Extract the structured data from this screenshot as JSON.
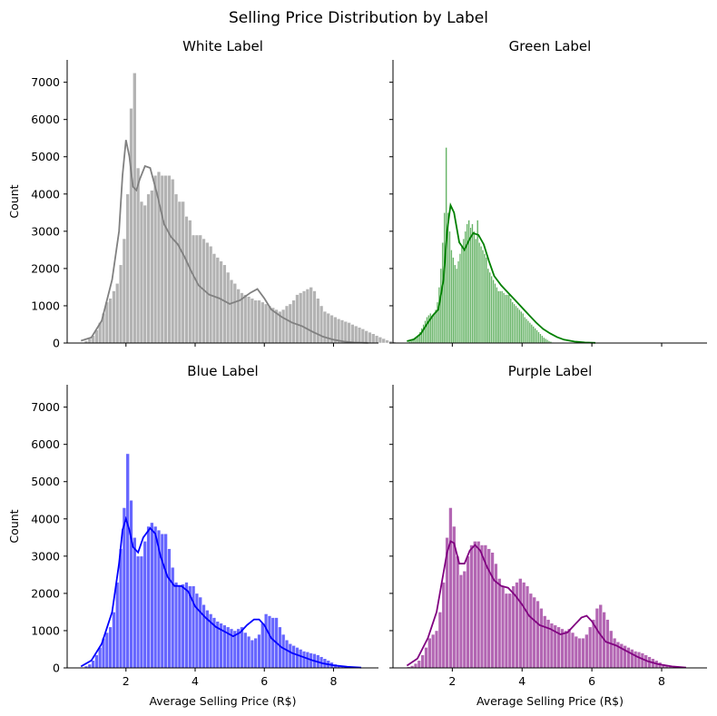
{
  "figure": {
    "title": "Selling Price Distribution by Label"
  },
  "chart_data": [
    {
      "type": "histogram",
      "title": "White Label",
      "color": "#808080",
      "xlabel": "",
      "ylabel": "Count",
      "xlim": [
        0.3,
        9.3
      ],
      "ylim": [
        0,
        7600
      ],
      "xticks": [
        2,
        4,
        6,
        8
      ],
      "yticks": [
        0,
        1000,
        2000,
        3000,
        4000,
        5000,
        6000,
        7000
      ],
      "show_x_tick_labels": false,
      "show_y_tick_labels": true,
      "bin_width": 0.1,
      "x_start": 0.7,
      "values": [
        20,
        60,
        120,
        200,
        350,
        550,
        800,
        1100,
        1200,
        1400,
        1600,
        2100,
        2800,
        4000,
        6300,
        7250,
        4700,
        3800,
        3700,
        4000,
        4100,
        4500,
        4600,
        4500,
        4500,
        4500,
        4400,
        4000,
        3800,
        3800,
        3400,
        3300,
        2900,
        2900,
        2900,
        2800,
        2700,
        2600,
        2400,
        2300,
        2200,
        2100,
        1900,
        1700,
        1600,
        1450,
        1350,
        1300,
        1250,
        1200,
        1150,
        1150,
        1100,
        1050,
        1000,
        950,
        900,
        850,
        900,
        1000,
        1050,
        1150,
        1300,
        1350,
        1400,
        1450,
        1500,
        1400,
        1200,
        1000,
        850,
        800,
        750,
        700,
        650,
        620,
        580,
        550,
        500,
        460,
        420,
        380,
        330,
        290,
        250,
        200,
        160,
        120,
        80,
        50,
        30,
        20,
        10,
        5,
        3,
        2
      ],
      "kde": [
        [
          0.7,
          60
        ],
        [
          1.0,
          150
        ],
        [
          1.3,
          600
        ],
        [
          1.6,
          1700
        ],
        [
          1.8,
          3000
        ],
        [
          1.9,
          4500
        ],
        [
          2.0,
          5450
        ],
        [
          2.1,
          5000
        ],
        [
          2.2,
          4200
        ],
        [
          2.3,
          4100
        ],
        [
          2.4,
          4400
        ],
        [
          2.55,
          4750
        ],
        [
          2.7,
          4700
        ],
        [
          2.9,
          4000
        ],
        [
          3.1,
          3200
        ],
        [
          3.3,
          2850
        ],
        [
          3.5,
          2650
        ],
        [
          3.7,
          2300
        ],
        [
          3.9,
          1900
        ],
        [
          4.1,
          1550
        ],
        [
          4.4,
          1300
        ],
        [
          4.7,
          1200
        ],
        [
          5.0,
          1050
        ],
        [
          5.3,
          1150
        ],
        [
          5.6,
          1350
        ],
        [
          5.8,
          1450
        ],
        [
          6.0,
          1200
        ],
        [
          6.2,
          900
        ],
        [
          6.5,
          700
        ],
        [
          6.8,
          550
        ],
        [
          7.1,
          450
        ],
        [
          7.4,
          300
        ],
        [
          7.7,
          170
        ],
        [
          8.0,
          90
        ],
        [
          8.3,
          40
        ],
        [
          8.6,
          15
        ],
        [
          9.0,
          5
        ]
      ]
    },
    {
      "type": "histogram",
      "title": "Green Label",
      "color": "#008000",
      "xlabel": "",
      "ylabel": "",
      "xlim": [
        0.3,
        9.3
      ],
      "ylim": [
        0,
        7600
      ],
      "xticks": [
        2,
        4,
        6,
        8
      ],
      "yticks": [
        0,
        1000,
        2000,
        3000,
        4000,
        5000,
        6000,
        7000
      ],
      "show_x_tick_labels": false,
      "show_y_tick_labels": false,
      "bin_width": 0.05,
      "x_start": 0.7,
      "values": [
        20,
        40,
        60,
        80,
        100,
        150,
        200,
        300,
        400,
        500,
        600,
        700,
        750,
        800,
        700,
        800,
        900,
        1100,
        1500,
        2000,
        2700,
        3500,
        5250,
        3500,
        3000,
        2500,
        2300,
        2100,
        2000,
        2200,
        2400,
        2600,
        2800,
        3000,
        3200,
        3300,
        3100,
        3200,
        3000,
        2800,
        3300,
        2700,
        2600,
        2500,
        2400,
        2300,
        2000,
        1900,
        1800,
        1700,
        1600,
        1500,
        1400,
        1400,
        1400,
        1350,
        1300,
        1300,
        1300,
        1200,
        1100,
        1050,
        1000,
        950,
        900,
        850,
        800,
        700,
        650,
        600,
        550,
        500,
        450,
        400,
        350,
        300,
        250,
        200,
        150,
        120,
        90,
        60,
        40,
        20,
        10,
        5,
        2
      ],
      "kde": [
        [
          0.7,
          50
        ],
        [
          0.9,
          100
        ],
        [
          1.1,
          250
        ],
        [
          1.3,
          550
        ],
        [
          1.45,
          750
        ],
        [
          1.6,
          900
        ],
        [
          1.75,
          1700
        ],
        [
          1.85,
          3000
        ],
        [
          1.95,
          3700
        ],
        [
          2.05,
          3500
        ],
        [
          2.2,
          2700
        ],
        [
          2.35,
          2500
        ],
        [
          2.5,
          2800
        ],
        [
          2.6,
          2950
        ],
        [
          2.75,
          2900
        ],
        [
          2.9,
          2650
        ],
        [
          3.05,
          2200
        ],
        [
          3.2,
          1800
        ],
        [
          3.4,
          1550
        ],
        [
          3.6,
          1350
        ],
        [
          3.8,
          1150
        ],
        [
          4.0,
          950
        ],
        [
          4.2,
          750
        ],
        [
          4.4,
          550
        ],
        [
          4.6,
          380
        ],
        [
          4.8,
          260
        ],
        [
          5.0,
          160
        ],
        [
          5.2,
          90
        ],
        [
          5.5,
          40
        ],
        [
          5.8,
          15
        ],
        [
          6.1,
          5
        ]
      ]
    },
    {
      "type": "histogram",
      "title": "Blue Label",
      "color": "#0000ff",
      "xlabel": "Average Selling Price (R$)",
      "ylabel": "Count",
      "xlim": [
        0.3,
        9.3
      ],
      "ylim": [
        0,
        7600
      ],
      "xticks": [
        2,
        4,
        6,
        8
      ],
      "yticks": [
        0,
        1000,
        2000,
        3000,
        4000,
        5000,
        6000,
        7000
      ],
      "show_x_tick_labels": true,
      "show_y_tick_labels": true,
      "bin_width": 0.1,
      "x_start": 0.7,
      "values": [
        20,
        50,
        100,
        200,
        350,
        550,
        800,
        950,
        1100,
        1500,
        2300,
        3200,
        4300,
        5750,
        4500,
        3500,
        3000,
        3000,
        3400,
        3800,
        3900,
        3800,
        3700,
        3600,
        3600,
        3200,
        2700,
        2300,
        2200,
        2250,
        2300,
        2200,
        2200,
        2000,
        1900,
        1700,
        1550,
        1450,
        1350,
        1250,
        1200,
        1150,
        1100,
        1050,
        1000,
        1050,
        1100,
        950,
        850,
        750,
        800,
        900,
        1200,
        1450,
        1400,
        1350,
        1350,
        1100,
        900,
        750,
        650,
        600,
        550,
        500,
        450,
        430,
        400,
        380,
        350,
        300,
        250,
        200,
        150,
        100,
        70,
        50,
        30,
        20,
        10,
        5
      ],
      "kde": [
        [
          0.7,
          40
        ],
        [
          1.0,
          200
        ],
        [
          1.3,
          650
        ],
        [
          1.6,
          1500
        ],
        [
          1.8,
          2800
        ],
        [
          1.9,
          3700
        ],
        [
          2.0,
          4000
        ],
        [
          2.1,
          3700
        ],
        [
          2.2,
          3250
        ],
        [
          2.35,
          3100
        ],
        [
          2.5,
          3500
        ],
        [
          2.7,
          3750
        ],
        [
          2.85,
          3600
        ],
        [
          3.0,
          3000
        ],
        [
          3.2,
          2450
        ],
        [
          3.4,
          2200
        ],
        [
          3.6,
          2200
        ],
        [
          3.8,
          2050
        ],
        [
          4.0,
          1650
        ],
        [
          4.3,
          1350
        ],
        [
          4.6,
          1100
        ],
        [
          4.9,
          950
        ],
        [
          5.1,
          850
        ],
        [
          5.3,
          950
        ],
        [
          5.5,
          1150
        ],
        [
          5.7,
          1300
        ],
        [
          5.85,
          1300
        ],
        [
          6.0,
          1150
        ],
        [
          6.2,
          800
        ],
        [
          6.5,
          550
        ],
        [
          6.8,
          400
        ],
        [
          7.1,
          300
        ],
        [
          7.4,
          200
        ],
        [
          7.7,
          120
        ],
        [
          8.0,
          70
        ],
        [
          8.4,
          30
        ],
        [
          8.8,
          8
        ]
      ]
    },
    {
      "type": "histogram",
      "title": "Purple Label",
      "color": "#800080",
      "xlabel": "Average Selling Price (R$)",
      "ylabel": "",
      "xlim": [
        0.3,
        9.3
      ],
      "ylim": [
        0,
        7600
      ],
      "xticks": [
        2,
        4,
        6,
        8
      ],
      "yticks": [
        0,
        1000,
        2000,
        3000,
        4000,
        5000,
        6000,
        7000
      ],
      "show_x_tick_labels": true,
      "show_y_tick_labels": false,
      "bin_width": 0.1,
      "x_start": 0.7,
      "values": [
        30,
        60,
        120,
        200,
        350,
        550,
        800,
        900,
        1000,
        1500,
        2300,
        3500,
        4300,
        3800,
        3000,
        2500,
        2600,
        3000,
        3300,
        3400,
        3400,
        3300,
        3300,
        3200,
        3100,
        2800,
        2400,
        2200,
        2000,
        2000,
        2200,
        2300,
        2400,
        2300,
        2200,
        2000,
        1900,
        1800,
        1600,
        1400,
        1300,
        1200,
        1150,
        1100,
        1050,
        1000,
        1050,
        950,
        850,
        800,
        800,
        900,
        1100,
        1300,
        1600,
        1700,
        1500,
        1300,
        1000,
        800,
        700,
        650,
        600,
        550,
        500,
        450,
        430,
        400,
        350,
        300,
        250,
        200,
        150,
        100,
        70,
        50,
        30,
        20,
        10,
        5
      ],
      "kde": [
        [
          0.7,
          60
        ],
        [
          1.0,
          250
        ],
        [
          1.3,
          800
        ],
        [
          1.55,
          1500
        ],
        [
          1.7,
          2300
        ],
        [
          1.85,
          3100
        ],
        [
          1.95,
          3400
        ],
        [
          2.05,
          3350
        ],
        [
          2.2,
          2800
        ],
        [
          2.35,
          2800
        ],
        [
          2.5,
          3150
        ],
        [
          2.65,
          3300
        ],
        [
          2.8,
          3150
        ],
        [
          3.0,
          2700
        ],
        [
          3.2,
          2350
        ],
        [
          3.4,
          2200
        ],
        [
          3.6,
          2150
        ],
        [
          3.8,
          1950
        ],
        [
          4.0,
          1700
        ],
        [
          4.2,
          1400
        ],
        [
          4.5,
          1150
        ],
        [
          4.8,
          1050
        ],
        [
          5.1,
          900
        ],
        [
          5.3,
          950
        ],
        [
          5.5,
          1150
        ],
        [
          5.7,
          1350
        ],
        [
          5.85,
          1400
        ],
        [
          6.0,
          1250
        ],
        [
          6.2,
          950
        ],
        [
          6.4,
          700
        ],
        [
          6.7,
          600
        ],
        [
          7.0,
          450
        ],
        [
          7.3,
          300
        ],
        [
          7.6,
          180
        ],
        [
          7.9,
          100
        ],
        [
          8.3,
          40
        ],
        [
          8.7,
          10
        ]
      ]
    }
  ]
}
